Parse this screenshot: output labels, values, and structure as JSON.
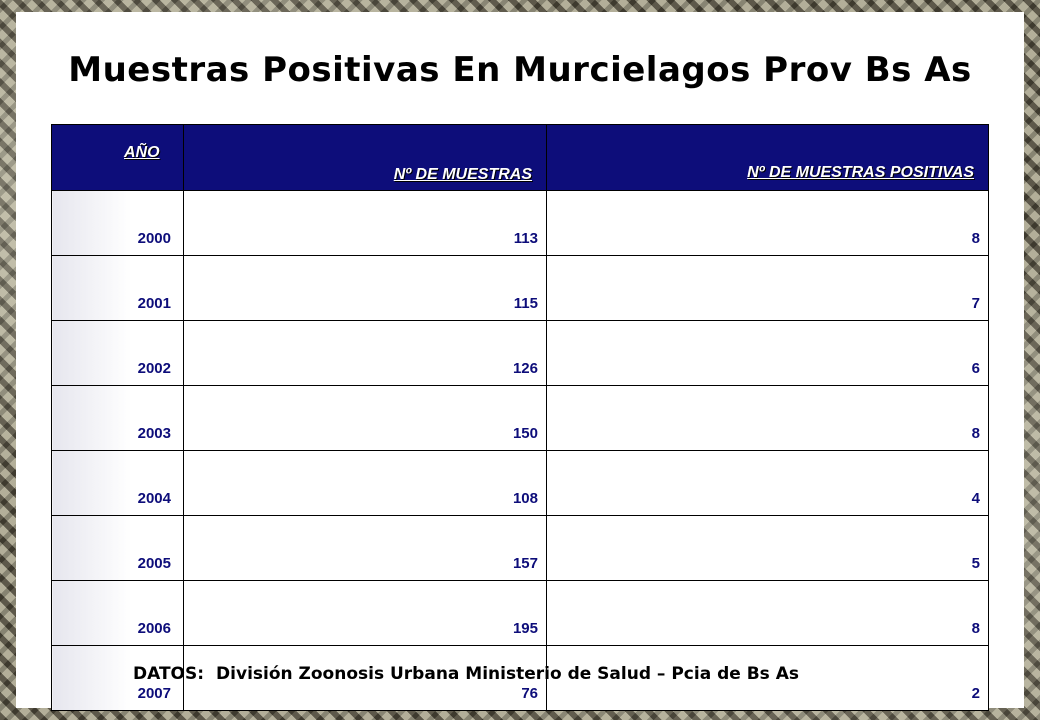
{
  "title": "Muestras Positivas En Murcielagos Prov Bs As",
  "table": {
    "headers": [
      "AÑO",
      "Nº DE MUESTRAS",
      "Nº DE MUESTRAS POSITIVAS"
    ],
    "rows": [
      [
        "2000",
        "113",
        "8"
      ],
      [
        "2001",
        "115",
        "7"
      ],
      [
        "2002",
        "126",
        "6"
      ],
      [
        "2003",
        "150",
        "8"
      ],
      [
        "2004",
        "108",
        "4"
      ],
      [
        "2005",
        "157",
        "5"
      ],
      [
        "2006",
        "195",
        "8"
      ],
      [
        "2007",
        "76",
        "2"
      ]
    ]
  },
  "source": {
    "label": "DATOS:",
    "text": "División Zoonosis Urbana Ministerio de Salud – Pcia de Bs As"
  },
  "colors": {
    "header_background": "#0d0d7a",
    "cell_text": "#0d0d7a"
  }
}
